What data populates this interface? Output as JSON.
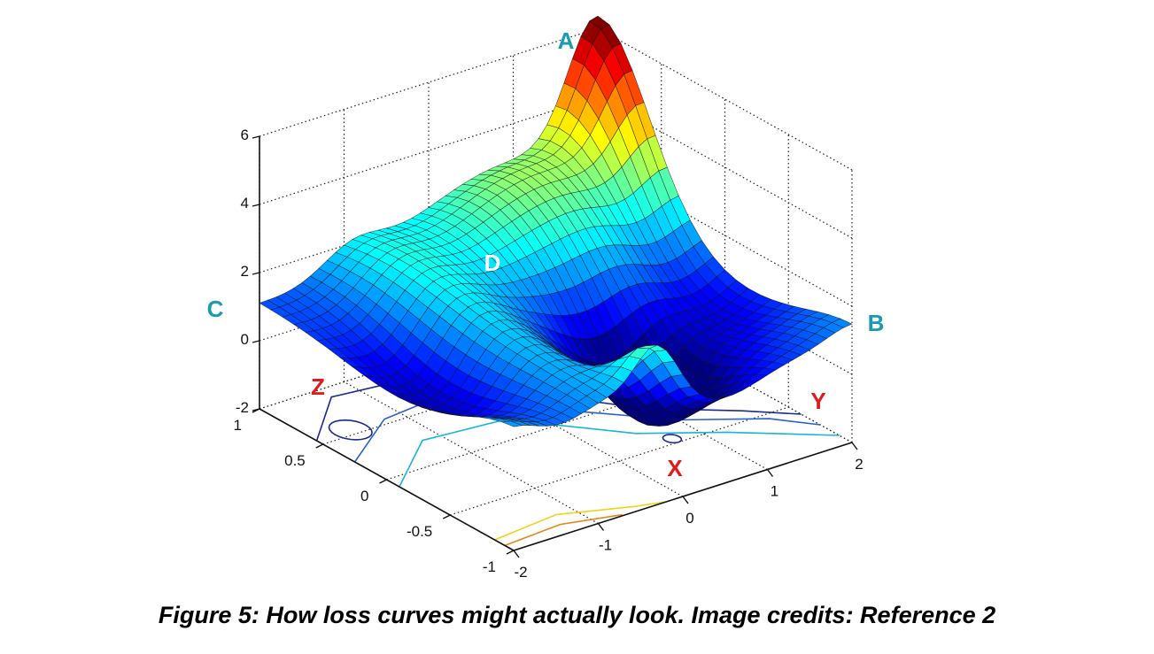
{
  "caption": "Figure 5: How loss curves might actually look. Image credits: Reference 2",
  "chart_data": {
    "type": "surface",
    "x_ticks": [
      "-2",
      "-1",
      "0",
      "1",
      "2"
    ],
    "y_ticks": [
      "-1",
      "-0.5",
      "0",
      "0.5",
      "1"
    ],
    "z_ticks": [
      "-2",
      "0",
      "2",
      "4",
      "6"
    ],
    "xlim": [
      -2,
      2
    ],
    "ylim": [
      -1,
      1
    ],
    "zlim": [
      -2,
      6
    ],
    "grid": true,
    "colormap": "jet",
    "contour_projection": true,
    "annotations": [
      {
        "label": "A",
        "color": "#1a9ab2",
        "desc": "surface peak"
      },
      {
        "label": "B",
        "color": "#1a9ab2"
      },
      {
        "label": "C",
        "color": "#1a9ab2"
      },
      {
        "label": "D",
        "color": "#ffffff"
      },
      {
        "label": "X",
        "color": "#e01b1b"
      },
      {
        "label": "Y",
        "color": "#e01b1b"
      },
      {
        "label": "Z",
        "color": "#e01b1b"
      }
    ]
  }
}
